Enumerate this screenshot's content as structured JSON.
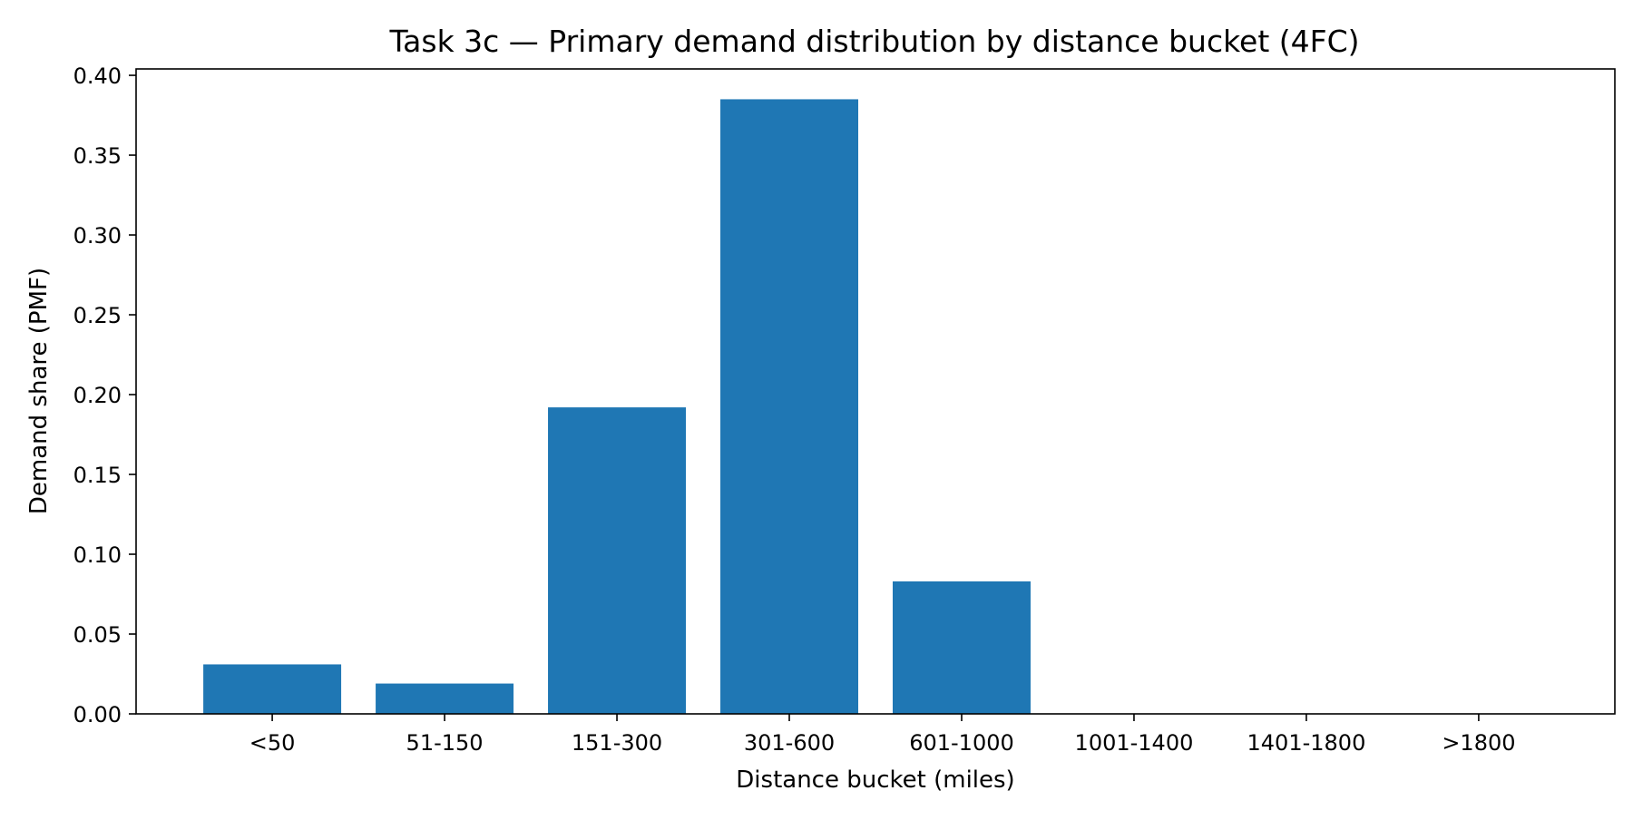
{
  "chart_data": {
    "type": "bar",
    "title": "Task 3c — Primary demand distribution by distance bucket (4FC)",
    "xlabel": "Distance bucket (miles)",
    "ylabel": "Demand share (PMF)",
    "categories": [
      "<50",
      "51-150",
      "151-300",
      "301-600",
      "601-1000",
      "1001-1400",
      "1401-1800",
      ">1800"
    ],
    "values": [
      0.031,
      0.019,
      0.192,
      0.385,
      0.083,
      0.0,
      0.0,
      0.0
    ],
    "ylim": [
      0,
      0.404
    ],
    "yticks": [
      0.0,
      0.05,
      0.1,
      0.15,
      0.2,
      0.25,
      0.3,
      0.35,
      0.4
    ],
    "ytick_labels": [
      "0.00",
      "0.05",
      "0.10",
      "0.15",
      "0.20",
      "0.25",
      "0.30",
      "0.35",
      "0.40"
    ],
    "bar_color": "#1f77b4",
    "grid": false,
    "legend": "none"
  }
}
